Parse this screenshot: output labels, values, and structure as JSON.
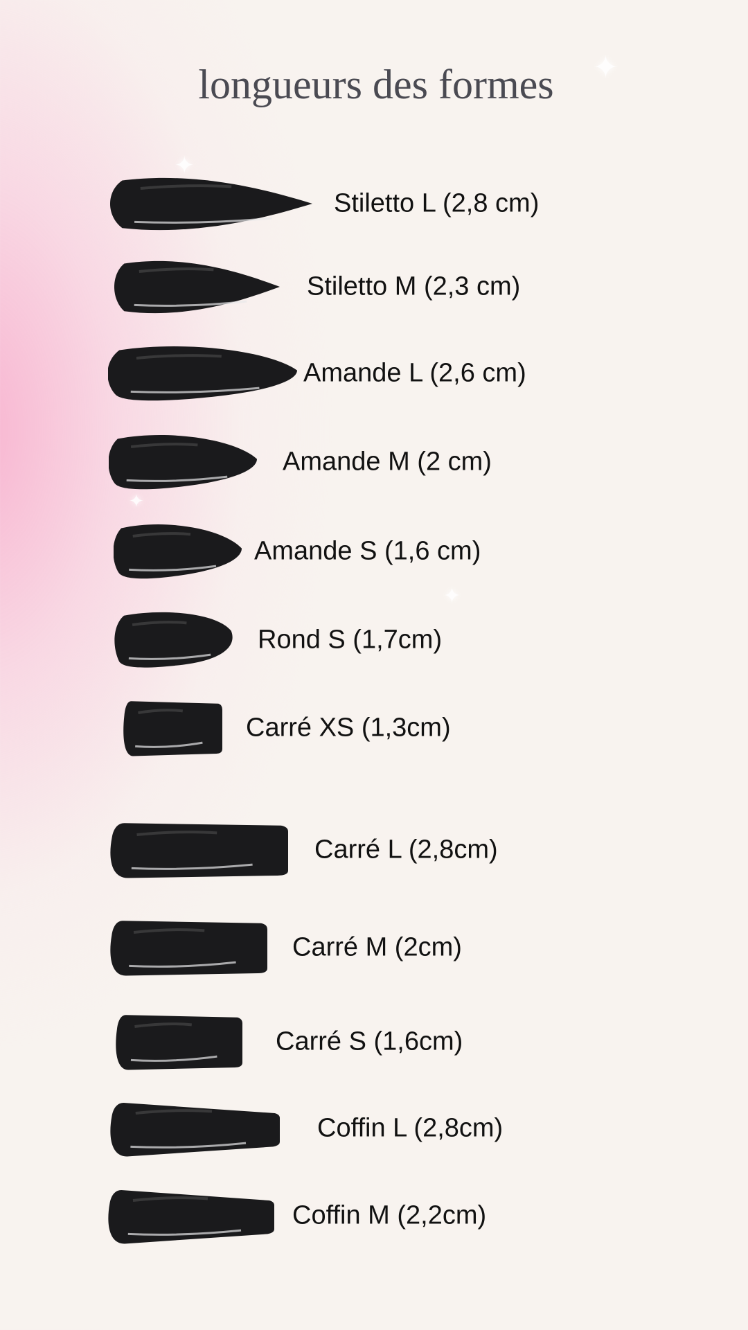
{
  "title": "longueurs des formes",
  "colors": {
    "nail": "#1a1a1c",
    "accent_pink": "#f8b0ce",
    "background": "#f8f3ef",
    "title": "#4a4a52"
  },
  "items": [
    {
      "label": "Stiletto L (2,8 cm)",
      "shape": "stiletto"
    },
    {
      "label": "Stiletto M (2,3 cm)",
      "shape": "stiletto"
    },
    {
      "label": "Amande L (2,6 cm)",
      "shape": "almond"
    },
    {
      "label": "Amande M (2 cm)",
      "shape": "almond"
    },
    {
      "label": "Amande S (1,6 cm)",
      "shape": "almond"
    },
    {
      "label": "Rond S (1,7cm)",
      "shape": "round"
    },
    {
      "label": "Carré XS (1,3cm)",
      "shape": "square"
    },
    {
      "label": "Carré L (2,8cm)",
      "shape": "square"
    },
    {
      "label": "Carré M (2cm)",
      "shape": "square"
    },
    {
      "label": "Carré S (1,6cm)",
      "shape": "square"
    },
    {
      "label": "Coffin L (2,8cm)",
      "shape": "coffin"
    },
    {
      "label": "Coffin M (2,2cm)",
      "shape": "coffin"
    }
  ]
}
